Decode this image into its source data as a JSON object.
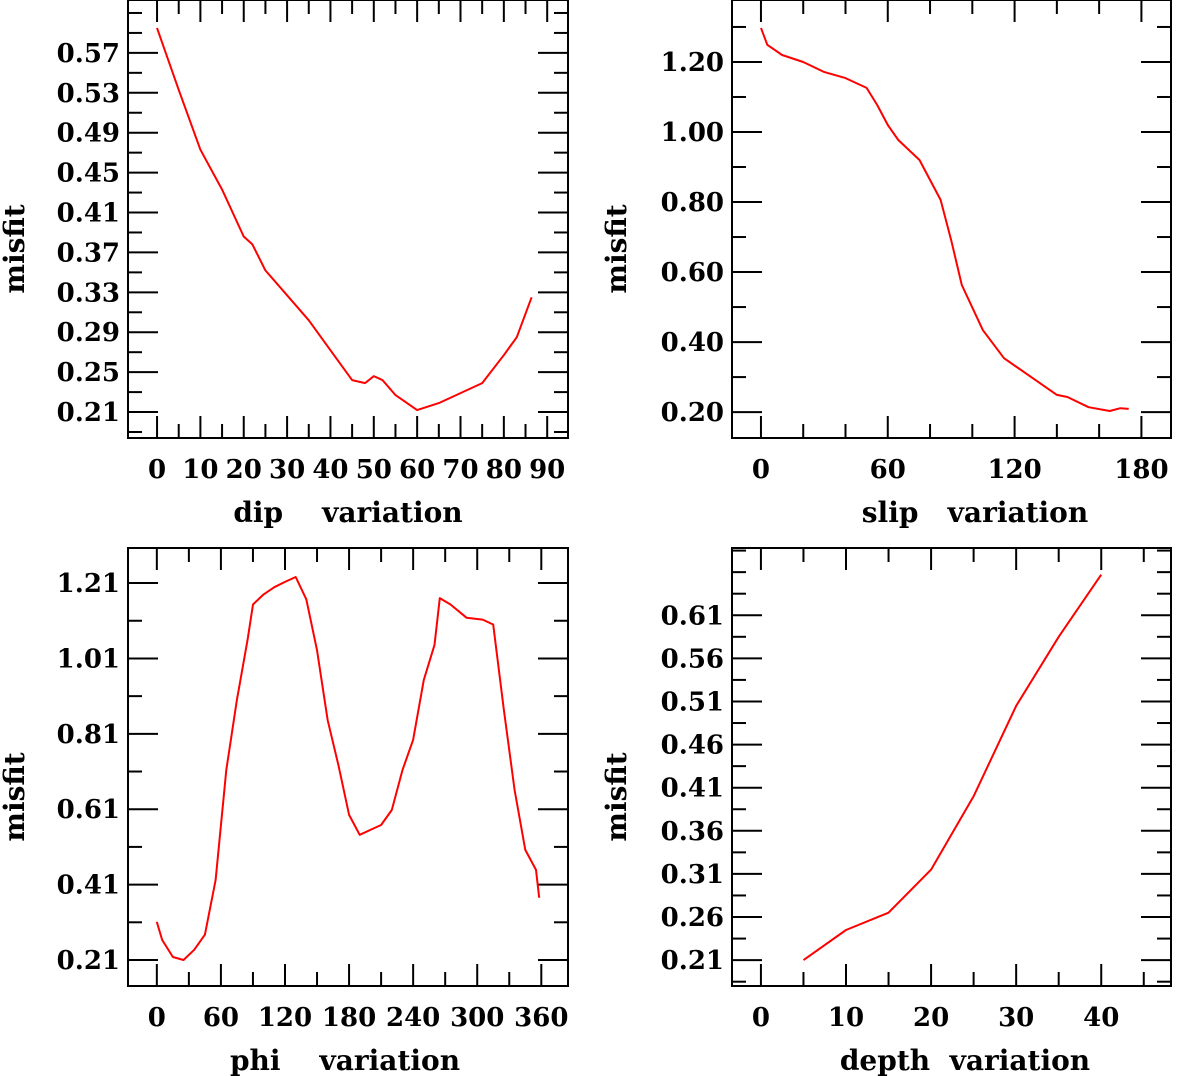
{
  "chart_data": [
    {
      "type": "line",
      "title": "",
      "xlabel": "dip    variation",
      "ylabel": "misfit",
      "xlim": [
        -6.7,
        94.8
      ],
      "ylim": [
        0.184,
        0.623
      ],
      "xticks": [
        0,
        10,
        20,
        30,
        40,
        50,
        60,
        70,
        80,
        90
      ],
      "xtick_labels": [
        "0",
        "10",
        "20",
        "30",
        "40",
        "50",
        "60",
        "70",
        "80",
        "90"
      ],
      "xminor": 5,
      "yticks": [
        0.21,
        0.25,
        0.29,
        0.33,
        0.37,
        0.41,
        0.45,
        0.49,
        0.53,
        0.57
      ],
      "ytick_labels": [
        "0.21",
        "0.25",
        "0.29",
        "0.33",
        "0.37",
        "0.41",
        "0.45",
        "0.49",
        "0.53",
        "0.57"
      ],
      "yminor": 0.02,
      "color": "#ff0000",
      "x": [
        0,
        5,
        10,
        15,
        20,
        22,
        25,
        30,
        35,
        40,
        45,
        48,
        50,
        52,
        55,
        60,
        65,
        70,
        75,
        80,
        83,
        86.4
      ],
      "y": [
        0.595,
        0.533,
        0.473,
        0.433,
        0.386,
        0.378,
        0.352,
        0.327,
        0.302,
        0.272,
        0.242,
        0.239,
        0.246,
        0.242,
        0.227,
        0.212,
        0.219,
        0.229,
        0.239,
        0.267,
        0.285,
        0.325
      ]
    },
    {
      "type": "line",
      "title": "",
      "xlabel": "slip   variation",
      "ylabel": "misfit",
      "xlim": [
        -13.7,
        194
      ],
      "ylim": [
        0.126,
        1.377
      ],
      "xticks": [
        0,
        60,
        120,
        180
      ],
      "xtick_labels": [
        "0",
        "60",
        "120",
        "180"
      ],
      "xminor": 20,
      "yticks": [
        0.2,
        0.4,
        0.6,
        0.8,
        1.0,
        1.2
      ],
      "ytick_labels": [
        "0.20",
        "0.40",
        "0.60",
        "0.80",
        "1.00",
        "1.20"
      ],
      "yminor": 0.1,
      "color": "#ff0000",
      "x": [
        0,
        3,
        10,
        20,
        30,
        40,
        50,
        55,
        60,
        65,
        75,
        85,
        90,
        95,
        105,
        115,
        130,
        140,
        145,
        155,
        165,
        170,
        174
      ],
      "y": [
        1.297,
        1.249,
        1.22,
        1.2,
        1.171,
        1.154,
        1.126,
        1.077,
        1.02,
        0.977,
        0.92,
        0.806,
        0.691,
        0.563,
        0.434,
        0.354,
        0.291,
        0.249,
        0.243,
        0.214,
        0.203,
        0.211,
        0.209
      ]
    },
    {
      "type": "line",
      "title": "",
      "xlabel": "phi    variation",
      "ylabel": "misfit",
      "xlim": [
        -27,
        385
      ],
      "ylim": [
        0.141,
        1.303
      ],
      "xticks": [
        0,
        60,
        120,
        180,
        240,
        300,
        360
      ],
      "xtick_labels": [
        "0",
        "60",
        "120",
        "180",
        "240",
        "300",
        "360"
      ],
      "xminor": 30,
      "yticks": [
        0.21,
        0.41,
        0.61,
        0.81,
        1.01,
        1.21
      ],
      "ytick_labels": [
        "0.21",
        "0.41",
        "0.61",
        "0.81",
        "1.01",
        "1.21"
      ],
      "yminor": 0.1,
      "color": "#ff0000",
      "x": [
        0,
        5,
        15,
        25,
        35,
        45,
        55,
        65,
        75,
        85,
        90,
        100,
        110,
        120,
        130,
        140,
        150,
        160,
        170,
        180,
        190,
        200,
        210,
        220,
        230,
        240,
        250,
        260,
        265,
        275,
        290,
        305,
        315,
        325,
        335,
        345,
        355,
        358
      ],
      "y": [
        0.311,
        0.263,
        0.218,
        0.21,
        0.237,
        0.277,
        0.422,
        0.714,
        0.9,
        1.06,
        1.153,
        1.18,
        1.199,
        1.213,
        1.226,
        1.167,
        1.032,
        0.846,
        0.727,
        0.595,
        0.542,
        0.555,
        0.568,
        0.608,
        0.714,
        0.794,
        0.953,
        1.046,
        1.17,
        1.153,
        1.118,
        1.113,
        1.1,
        0.873,
        0.661,
        0.502,
        0.449,
        0.375
      ]
    },
    {
      "type": "line",
      "title": "",
      "xlabel": "depth  variation",
      "ylabel": "misfit",
      "xlim": [
        -3.4,
        48.2
      ],
      "ylim": [
        0.18,
        0.688
      ],
      "xticks": [
        0,
        10,
        20,
        30,
        40
      ],
      "xtick_labels": [
        "0",
        "10",
        "20",
        "30",
        "40"
      ],
      "xminor": 5,
      "yticks": [
        0.21,
        0.26,
        0.31,
        0.36,
        0.41,
        0.46,
        0.51,
        0.56,
        0.61
      ],
      "ytick_labels": [
        "0.21",
        "0.26",
        "0.31",
        "0.36",
        "0.41",
        "0.46",
        "0.51",
        "0.56",
        "0.61"
      ],
      "yminor": 0.025,
      "color": "#ff0000",
      "x": [
        5,
        10,
        15,
        20,
        25,
        30,
        35,
        40
      ],
      "y": [
        0.21,
        0.245,
        0.265,
        0.315,
        0.4,
        0.505,
        0.585,
        0.657
      ]
    }
  ]
}
